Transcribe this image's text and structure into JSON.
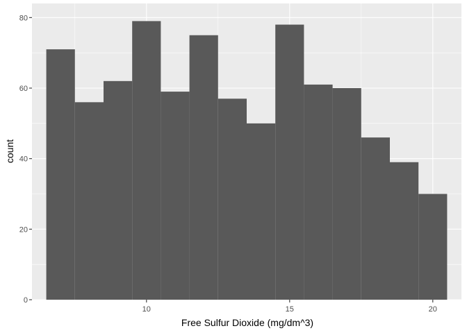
{
  "chart_data": {
    "type": "bar",
    "subtype": "histogram",
    "xlabel": "Free Sulfur Dioxide (mg/dm^3)",
    "ylabel": "count",
    "xlim": [
      6,
      21
    ],
    "ylim": [
      0,
      84
    ],
    "x_ticks": [
      10,
      15,
      20
    ],
    "y_ticks": [
      0,
      20,
      40,
      60,
      80
    ],
    "bin_width": 1,
    "bins": [
      {
        "x0": 6.5,
        "x1": 7.5,
        "count": 71
      },
      {
        "x0": 7.5,
        "x1": 8.5,
        "count": 56
      },
      {
        "x0": 8.5,
        "x1": 9.5,
        "count": 62
      },
      {
        "x0": 9.5,
        "x1": 10.5,
        "count": 79
      },
      {
        "x0": 10.5,
        "x1": 11.5,
        "count": 59
      },
      {
        "x0": 11.5,
        "x1": 12.5,
        "count": 75
      },
      {
        "x0": 12.5,
        "x1": 13.5,
        "count": 57
      },
      {
        "x0": 13.5,
        "x1": 14.5,
        "count": 50
      },
      {
        "x0": 14.5,
        "x1": 15.5,
        "count": 78
      },
      {
        "x0": 15.5,
        "x1": 16.5,
        "count": 61
      },
      {
        "x0": 16.5,
        "x1": 17.5,
        "count": 60
      },
      {
        "x0": 17.5,
        "x1": 18.5,
        "count": 46
      },
      {
        "x0": 18.5,
        "x1": 19.5,
        "count": 39
      },
      {
        "x0": 19.5,
        "x1": 20.5,
        "count": 30
      }
    ],
    "grid": true,
    "colors": {
      "panel_background": "#ebebeb",
      "grid_major": "#ffffff",
      "bar_fill": "#595959"
    }
  }
}
